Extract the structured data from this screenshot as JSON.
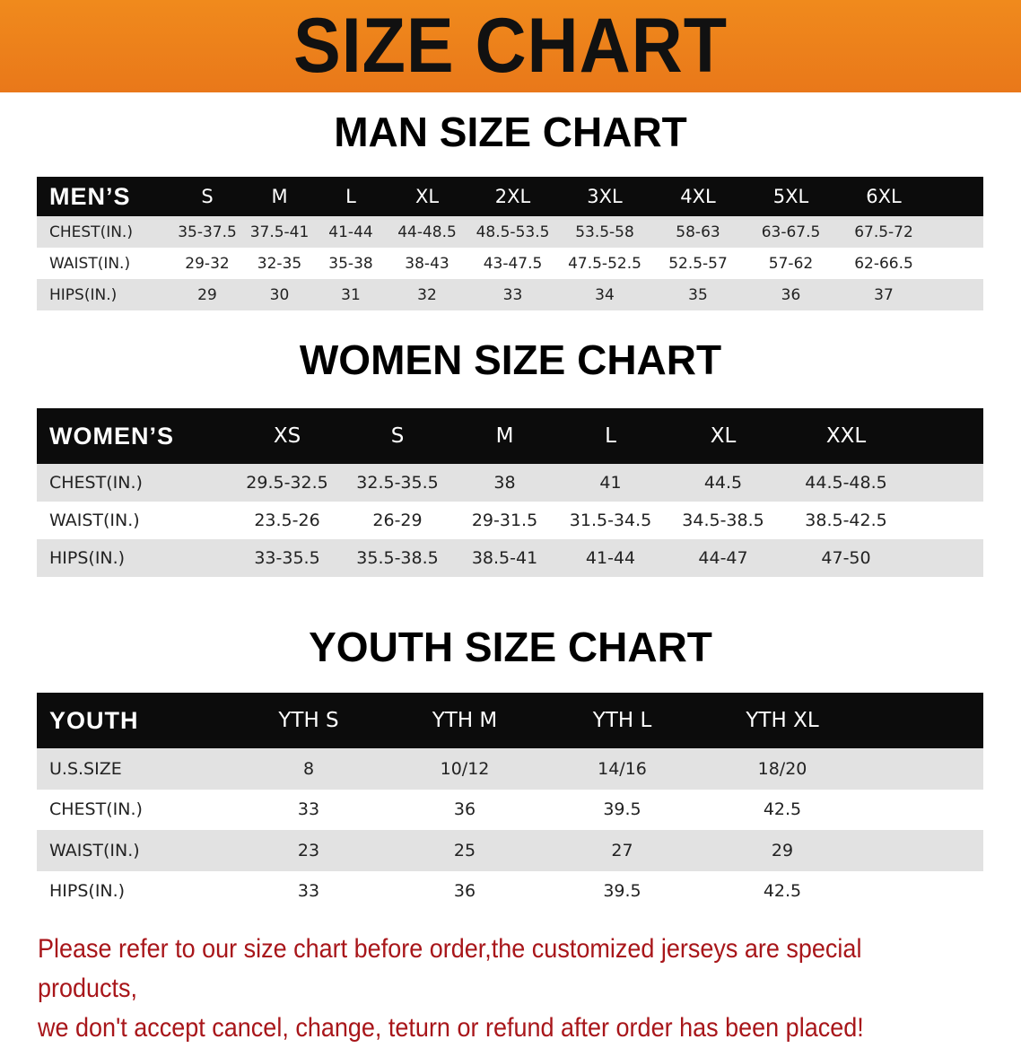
{
  "banner_title": "SIZE CHART",
  "men": {
    "title": "MAN SIZE CHART",
    "header": [
      "MEN’S",
      "S",
      "M",
      "L",
      "XL",
      "2XL",
      "3XL",
      "4XL",
      "5XL",
      "6XL"
    ],
    "rows": [
      [
        "CHEST(IN.)",
        "35-37.5",
        "37.5-41",
        "41-44",
        "44-48.5",
        "48.5-53.5",
        "53.5-58",
        "58-63",
        "63-67.5",
        "67.5-72"
      ],
      [
        "WAIST(IN.)",
        "29-32",
        "32-35",
        "35-38",
        "38-43",
        "43-47.5",
        "47.5-52.5",
        "52.5-57",
        "57-62",
        "62-66.5"
      ],
      [
        "HIPS(IN.)",
        "29",
        "30",
        "31",
        "32",
        "33",
        "34",
        "35",
        "36",
        "37"
      ]
    ]
  },
  "women": {
    "title": "WOMEN SIZE CHART",
    "header": [
      "WOMEN’S",
      "XS",
      "S",
      "M",
      "L",
      "XL",
      "XXL"
    ],
    "rows": [
      [
        "CHEST(IN.)",
        "29.5-32.5",
        "32.5-35.5",
        "38",
        "41",
        "44.5",
        "44.5-48.5"
      ],
      [
        "WAIST(IN.)",
        "23.5-26",
        "26-29",
        "29-31.5",
        "31.5-34.5",
        "34.5-38.5",
        "38.5-42.5"
      ],
      [
        "HIPS(IN.)",
        "33-35.5",
        "35.5-38.5",
        "38.5-41",
        "41-44",
        "44-47",
        "47-50"
      ]
    ]
  },
  "youth": {
    "title": "YOUTH SIZE CHART",
    "header": [
      "YOUTH",
      "YTH S",
      "YTH M",
      "YTH L",
      "YTH XL"
    ],
    "rows": [
      [
        "U.S.SIZE",
        "8",
        "10/12",
        "14/16",
        "18/20"
      ],
      [
        "CHEST(IN.)",
        "33",
        "36",
        "39.5",
        "42.5"
      ],
      [
        "WAIST(IN.)",
        "23",
        "25",
        "27",
        "29"
      ],
      [
        "HIPS(IN.)",
        "33",
        "36",
        "39.5",
        "42.5"
      ]
    ]
  },
  "note": {
    "line1": "Please refer to our size chart before order,the customized jerseys are special products,",
    "line2": "we don't accept cancel, change, teturn or refund after order has been placed!"
  },
  "colors": {
    "banner": "#ee831b",
    "header_row": "#0c0c0c",
    "note_text": "#a8161a"
  }
}
